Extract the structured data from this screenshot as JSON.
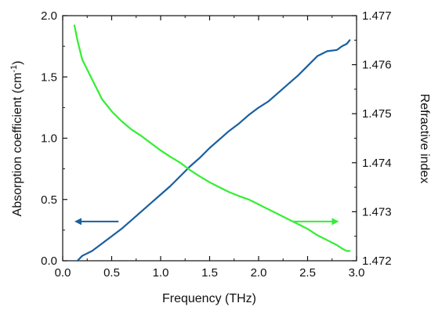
{
  "chart_data": {
    "type": "line",
    "xlabel": "Frequency (THz)",
    "ylabel_left": {
      "pre": "Absorption coefficient (cm",
      "sup": "-1",
      "post": ")"
    },
    "ylabel_right": "Refractive index",
    "xlim": [
      0.0,
      3.0
    ],
    "ylim_left": [
      0.0,
      2.0
    ],
    "ylim_right": [
      1.472,
      1.477
    ],
    "x_ticks": [
      "0.0",
      "0.5",
      "1.0",
      "1.5",
      "2.0",
      "2.5",
      "3.0"
    ],
    "y_left_ticks": [
      "0.0",
      "0.5",
      "1.0",
      "1.5",
      "2.0"
    ],
    "y_right_ticks": [
      "1.472",
      "1.473",
      "1.474",
      "1.475",
      "1.476",
      "1.477"
    ],
    "grid": false,
    "series": [
      {
        "axis": "left",
        "color": "#1a5f9e",
        "x": [
          0.15,
          0.2,
          0.3,
          0.4,
          0.5,
          0.6,
          0.7,
          0.8,
          0.9,
          1.0,
          1.1,
          1.2,
          1.3,
          1.4,
          1.5,
          1.6,
          1.7,
          1.8,
          1.9,
          2.0,
          2.1,
          2.2,
          2.3,
          2.4,
          2.5,
          2.6,
          2.7,
          2.8,
          2.85,
          2.9,
          2.93
        ],
        "y": [
          0.0,
          0.04,
          0.08,
          0.14,
          0.2,
          0.26,
          0.33,
          0.4,
          0.47,
          0.54,
          0.61,
          0.69,
          0.77,
          0.84,
          0.92,
          0.99,
          1.06,
          1.12,
          1.19,
          1.25,
          1.3,
          1.37,
          1.44,
          1.51,
          1.59,
          1.67,
          1.71,
          1.72,
          1.75,
          1.77,
          1.8
        ]
      },
      {
        "axis": "right",
        "color": "#33ee33",
        "x": [
          0.12,
          0.15,
          0.2,
          0.25,
          0.3,
          0.35,
          0.4,
          0.5,
          0.6,
          0.7,
          0.8,
          0.9,
          1.0,
          1.1,
          1.2,
          1.3,
          1.4,
          1.5,
          1.6,
          1.7,
          1.8,
          1.9,
          2.0,
          2.1,
          2.2,
          2.3,
          2.4,
          2.5,
          2.6,
          2.7,
          2.8,
          2.85,
          2.9,
          2.93
        ],
        "y": [
          1.4768,
          1.4765,
          1.4761,
          1.4759,
          1.4757,
          1.4755,
          1.4753,
          1.47505,
          1.47485,
          1.47468,
          1.47455,
          1.4744,
          1.47425,
          1.47412,
          1.474,
          1.47385,
          1.47372,
          1.4736,
          1.4735,
          1.4734,
          1.47332,
          1.47325,
          1.47315,
          1.47305,
          1.47295,
          1.47285,
          1.47275,
          1.47265,
          1.47252,
          1.47242,
          1.47232,
          1.47225,
          1.4722,
          1.4722
        ]
      }
    ],
    "annotations": [
      {
        "type": "arrow",
        "direction": "left",
        "points_to_axis": "left",
        "color": "#1a5f9e",
        "x_range": [
          0.57,
          0.12
        ],
        "y_left": 0.32
      },
      {
        "type": "arrow",
        "direction": "right",
        "points_to_axis": "right",
        "color": "#33ee33",
        "x_range": [
          2.35,
          2.82
        ],
        "y_left": 0.32
      }
    ]
  }
}
